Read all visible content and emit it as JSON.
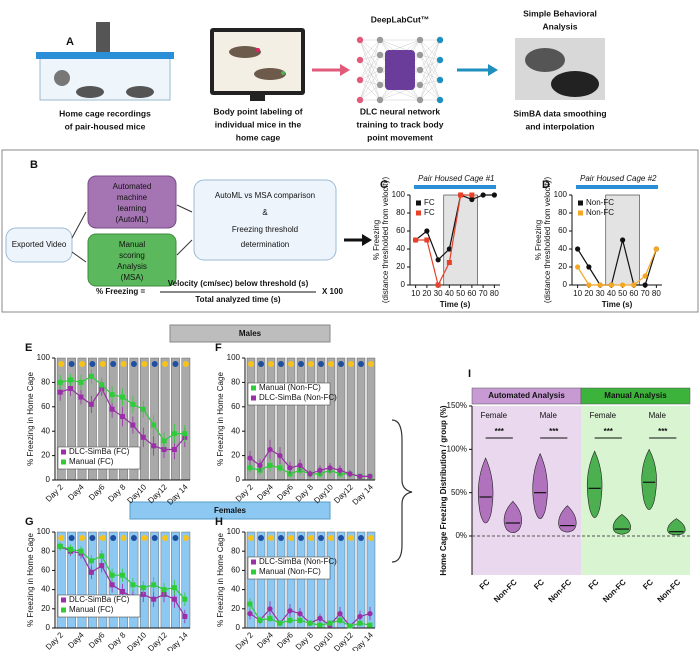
{
  "panel_a": {
    "label": "A",
    "cage": [
      "Home cage recordings",
      "of pair-housed mice"
    ],
    "labeling": [
      "Body point labeling of",
      "individual mice in the",
      "home cage"
    ],
    "dlc_title": "DeepLabCut™",
    "dlc": [
      "DLC neural network",
      "training to track body",
      "point movement"
    ],
    "simba_title": [
      "Simple Behavioral",
      "Analysis"
    ],
    "simba": [
      "SimBA data smoothing",
      "and interpolation"
    ]
  },
  "panel_b": {
    "label": "B",
    "input": "Exported Video",
    "automl": [
      "Automated",
      "machine",
      "learning",
      "(AutoML)"
    ],
    "msa": [
      "Manual",
      "scoring",
      "Analysis",
      "(MSA)"
    ],
    "comparison": [
      "AutoML vs MSA comparison",
      "&",
      "Freezing threshold",
      "determination"
    ],
    "formula": {
      "lhs": "% Freezing =",
      "numerator": "Velocity (cm/sec) below threshold (s)",
      "denominator": "Total analyzed time (s)",
      "factor": "X 100"
    }
  },
  "groups": {
    "males": "Males",
    "females": "Females"
  },
  "chart_data": [
    {
      "type": "line",
      "label": "C",
      "title": "Pair Housed Cage #1",
      "ylabel": [
        "% Freezing",
        "(distance thresholded from velocity)"
      ],
      "xlabel": "Time (s)",
      "x": [
        10,
        20,
        30,
        40,
        50,
        60,
        70,
        80
      ],
      "xlim": [
        5,
        85
      ],
      "xticks": [
        10,
        20,
        30,
        40,
        50,
        60,
        70,
        80
      ],
      "ylim": [
        0,
        100
      ],
      "yticks": [
        0,
        20,
        40,
        60,
        80,
        100
      ],
      "shade": [
        35,
        65
      ],
      "legend": "upper left",
      "series": [
        {
          "name": "FC",
          "color": "#111111",
          "marker": "circle",
          "values": [
            50,
            60,
            28,
            40,
            100,
            95,
            100,
            100
          ]
        },
        {
          "name": "FC",
          "color": "#e8402a",
          "marker": "square",
          "values": [
            50,
            50,
            0,
            25,
            100,
            100,
            null,
            null
          ]
        }
      ]
    },
    {
      "type": "line",
      "label": "D",
      "title": "Pair Housed Cage #2",
      "ylabel": [
        "% Freezing",
        "(distance thresholded from velocity)"
      ],
      "xlabel": "Time (s)",
      "x": [
        10,
        20,
        30,
        40,
        50,
        60,
        70,
        80
      ],
      "xlim": [
        5,
        85
      ],
      "xticks": [
        10,
        20,
        30,
        40,
        50,
        60,
        70,
        80
      ],
      "ylim": [
        0,
        100
      ],
      "yticks": [
        0,
        20,
        40,
        60,
        80,
        100
      ],
      "shade": [
        35,
        65
      ],
      "legend": "upper left",
      "series": [
        {
          "name": "Non-FC",
          "color": "#111111",
          "marker": "circle",
          "values": [
            40,
            20,
            0,
            0,
            50,
            0,
            0,
            40
          ]
        },
        {
          "name": "Non-FC",
          "color": "#f5a623",
          "marker": "circle",
          "values": [
            20,
            0,
            0,
            0,
            0,
            0,
            10,
            40
          ]
        }
      ]
    },
    {
      "type": "line",
      "label": "E",
      "ylabel": [
        "% Freezing in Home Cage"
      ],
      "categories": [
        "Day 2",
        null,
        "Day4",
        null,
        "Day6",
        null,
        "Day 8",
        null,
        "Day10",
        null,
        "Day12",
        null,
        "Day 14"
      ],
      "ylim": [
        0,
        100
      ],
      "yticks": [
        0,
        20,
        40,
        60,
        80,
        100
      ],
      "band_color": "#a9a9a9",
      "legend": "lower left",
      "series": [
        {
          "name": "DLC-SimBa (FC)",
          "color": "#9b2fa8",
          "marker": "square",
          "values": [
            72,
            75,
            68,
            62,
            75,
            58,
            52,
            45,
            35,
            28,
            25,
            25,
            35
          ],
          "errors": [
            7,
            6,
            6,
            7,
            6,
            7,
            8,
            7,
            8,
            8,
            7,
            8,
            8
          ]
        },
        {
          "name": "Manual (FC)",
          "color": "#2fcc3a",
          "marker": "square",
          "values": [
            80,
            82,
            80,
            85,
            78,
            70,
            68,
            62,
            58,
            45,
            32,
            38,
            38
          ],
          "errors": [
            6,
            5,
            6,
            6,
            6,
            7,
            7,
            7,
            7,
            8,
            7,
            8,
            7
          ]
        }
      ]
    },
    {
      "type": "line",
      "label": "F",
      "ylabel": [
        "% Freezing in Home Cage"
      ],
      "categories": [
        "Day 2",
        null,
        "Day4",
        null,
        "Day6",
        null,
        "Day 8",
        null,
        "Day10",
        null,
        "Day12",
        null,
        "Day 14"
      ],
      "ylim": [
        0,
        100
      ],
      "yticks": [
        0,
        20,
        40,
        60,
        80,
        100
      ],
      "band_color": "#a9a9a9",
      "legend": "upper left",
      "series": [
        {
          "name": "Manual (Non-FC)",
          "color": "#2fcc3a",
          "marker": "square",
          "values": [
            10,
            8,
            12,
            10,
            5,
            8,
            5,
            5,
            8,
            5,
            5,
            3,
            3
          ],
          "errors": [
            4,
            4,
            5,
            4,
            3,
            4,
            3,
            3,
            4,
            3,
            3,
            2,
            2
          ]
        },
        {
          "name": "DLC-SimBa (Non-FC)",
          "color": "#9b2fa8",
          "marker": "circle",
          "values": [
            18,
            12,
            25,
            20,
            10,
            12,
            5,
            8,
            10,
            8,
            5,
            3,
            3
          ],
          "errors": [
            6,
            5,
            8,
            7,
            5,
            5,
            3,
            4,
            4,
            4,
            3,
            2,
            2
          ]
        }
      ]
    },
    {
      "type": "line",
      "label": "G",
      "ylabel": [
        "% Freezing in Home Cage"
      ],
      "categories": [
        "Day 2",
        null,
        "Day4",
        null,
        "Day6",
        null,
        "Day 8",
        null,
        "Day10",
        null,
        "Day12",
        null,
        "Day 14"
      ],
      "ylim": [
        0,
        100
      ],
      "yticks": [
        0,
        20,
        40,
        60,
        80,
        100
      ],
      "band_color": "#8cc8f2",
      "legend": "lower left",
      "series": [
        {
          "name": "DLC-SimBa (FC)",
          "color": "#9b2fa8",
          "marker": "square",
          "values": [
            85,
            80,
            78,
            58,
            65,
            45,
            38,
            32,
            35,
            30,
            35,
            30,
            12
          ],
          "errors": [
            4,
            5,
            6,
            7,
            7,
            8,
            8,
            8,
            8,
            8,
            8,
            9,
            7
          ]
        },
        {
          "name": "Manual (FC)",
          "color": "#2fcc3a",
          "marker": "square",
          "values": [
            85,
            82,
            80,
            70,
            75,
            55,
            55,
            45,
            42,
            45,
            40,
            42,
            30
          ],
          "errors": [
            4,
            5,
            5,
            6,
            6,
            7,
            7,
            7,
            7,
            8,
            7,
            8,
            7
          ]
        }
      ]
    },
    {
      "type": "line",
      "label": "H",
      "ylabel": [
        "% Freezing in Home Cage"
      ],
      "categories": [
        "Day 2",
        null,
        "Day4",
        null,
        "Day6",
        null,
        "Day 8",
        null,
        "Day10",
        null,
        "Day12",
        null,
        "Day 14"
      ],
      "ylim": [
        0,
        100
      ],
      "yticks": [
        0,
        20,
        40,
        60,
        80,
        100
      ],
      "band_color": "#8cc8f2",
      "legend": "upper left",
      "series": [
        {
          "name": "DLC-SimBa (Non-FC)",
          "color": "#9b2fa8",
          "marker": "circle",
          "values": [
            15,
            8,
            20,
            5,
            18,
            15,
            5,
            10,
            3,
            15,
            2,
            12,
            15
          ],
          "errors": [
            6,
            4,
            8,
            3,
            7,
            6,
            3,
            5,
            2,
            7,
            2,
            6,
            7
          ]
        },
        {
          "name": "Manual (Non-FC)",
          "color": "#2fcc3a",
          "marker": "square",
          "values": [
            25,
            8,
            10,
            5,
            8,
            8,
            5,
            3,
            5,
            8,
            2,
            5,
            3
          ],
          "errors": [
            6,
            4,
            4,
            3,
            4,
            4,
            3,
            2,
            3,
            4,
            2,
            3,
            2
          ]
        }
      ]
    },
    {
      "type": "violin",
      "label": "I",
      "ylabel": "Home Cage Freezing Distribution / group (%)",
      "groups": [
        {
          "name": "Automated Analysis",
          "color": "#c79ad3",
          "background": "#ead8ee",
          "violin": "#b172bd"
        },
        {
          "name": "Manual Analysis",
          "color": "#3cb43c",
          "background": "#d8f4d0",
          "violin": "#4caf50"
        }
      ],
      "sexes": [
        "Female",
        "Male",
        "Female",
        "Male"
      ],
      "significance": [
        "***",
        "***",
        "***",
        "***"
      ],
      "categories": [
        "FC",
        "Non-FC",
        "FC",
        "Non-FC",
        "FC",
        "Non-FC",
        "FC",
        "Non-FC"
      ],
      "values": [
        45,
        15,
        50,
        12,
        55,
        8,
        62,
        5
      ],
      "min": [
        5,
        0,
        10,
        2,
        10,
        0,
        20,
        0
      ],
      "max": [
        90,
        40,
        95,
        35,
        98,
        25,
        100,
        20
      ],
      "ylim": [
        -45,
        150
      ],
      "yticks": [
        {
          "value": 0,
          "label": "0%"
        },
        {
          "value": 50,
          "label": "50%"
        },
        {
          "value": 100,
          "label": "100%"
        },
        {
          "value": 150,
          "label": "150%"
        }
      ]
    }
  ]
}
